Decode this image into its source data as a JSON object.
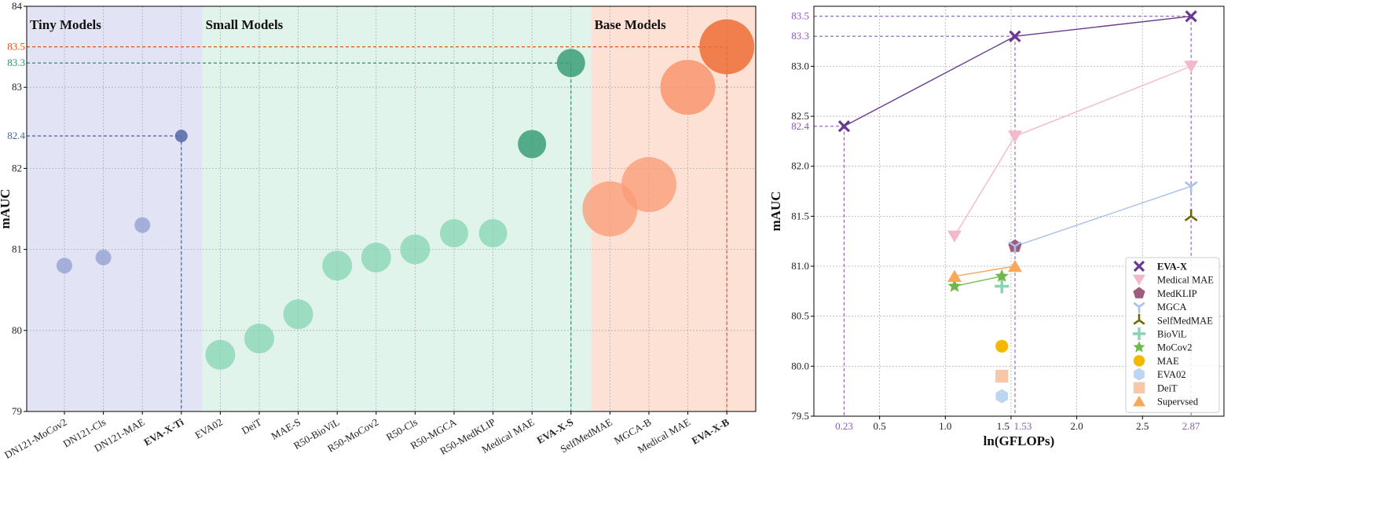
{
  "chart_data": [
    {
      "type": "scatter",
      "ylabel": "mAUC",
      "ylim": [
        79,
        84
      ],
      "yticks": [
        79,
        80,
        81,
        82,
        83,
        84
      ],
      "regions": [
        {
          "name": "Tiny Models",
          "color": "#d8daf0",
          "from": "DN121-MoCov2",
          "to": "EVA-X-Ti"
        },
        {
          "name": "Small Models",
          "color": "#d6f0e4",
          "from": "EVA02",
          "to": "EVA-X-S"
        },
        {
          "name": "Base Models",
          "color": "#fbd7c6",
          "from": "SelfMedMAE",
          "to": "EVA-X-B"
        }
      ],
      "categories": [
        "DN121-MoCov2",
        "DN121-Cls",
        "DN121-MAE",
        "EVA-X-Ti",
        "EVA02",
        "DeiT",
        "MAE-S",
        "R50-BioViL",
        "R50-MoCov2",
        "R50-Cls",
        "R50-MGCA",
        "R50-MedKLIP",
        "Medical MAE",
        "EVA-X-S",
        "SelfMedMAE",
        "MGCA-B",
        "Medical MAE",
        "EVA-X-B"
      ],
      "bold_categories": [
        "EVA-X-Ti",
        "EVA-X-S",
        "EVA-X-B"
      ],
      "values": [
        80.8,
        80.9,
        81.3,
        82.4,
        79.7,
        79.9,
        80.2,
        80.8,
        80.9,
        81.0,
        81.2,
        81.2,
        82.3,
        83.3,
        81.5,
        81.8,
        83.0,
        83.5
      ],
      "groups": [
        "tiny",
        "tiny",
        "tiny",
        "tiny",
        "small",
        "small",
        "small",
        "small",
        "small",
        "small",
        "small",
        "small",
        "small",
        "small",
        "base",
        "base",
        "base",
        "base"
      ],
      "relative_size": [
        1.0,
        1.0,
        1.0,
        0.9,
        1.9,
        1.9,
        1.9,
        1.9,
        1.9,
        1.9,
        1.8,
        1.8,
        1.8,
        1.8,
        3.5,
        3.5,
        3.5,
        3.5
      ],
      "highlights": [
        {
          "label": "82.4",
          "category_index": 3,
          "value": 82.4,
          "color": "#4a5fa0"
        },
        {
          "label": "83.3",
          "category_index": 13,
          "value": 83.3,
          "color": "#2f8f6a"
        },
        {
          "label": "83.5",
          "category_index": 17,
          "value": 83.5,
          "color": "#e0521c"
        }
      ],
      "colors": {
        "tiny": "#8f9fd0",
        "tiny_highlight": "#5366a8",
        "small": "#86d4b2",
        "small_highlight": "#3b9e78",
        "base": "#f99a76",
        "base_highlight": "#ef6c35"
      },
      "grid": true
    },
    {
      "type": "line",
      "xlabel": "ln(GFLOPs)",
      "ylabel": "mAUC",
      "xlim": [
        0.0,
        3.12
      ],
      "ylim": [
        79.5,
        83.6
      ],
      "xticks": [
        0.5,
        1.0,
        1.5,
        2.0,
        2.5
      ],
      "yticks": [
        79.5,
        80.0,
        80.5,
        81.0,
        81.5,
        82.0,
        82.5,
        83.0
      ],
      "special_xticks": [
        0.23,
        1.53,
        2.87
      ],
      "special_yticks": [
        82.4,
        83.3,
        83.5
      ],
      "grid": true,
      "legend_position": "lower-right",
      "series": [
        {
          "name": "EVA-X",
          "marker": "x",
          "color": "#6b3a8f",
          "x": [
            0.23,
            1.53,
            2.87
          ],
          "values": [
            82.4,
            83.3,
            83.5
          ]
        },
        {
          "name": "Medical MAE",
          "marker": "triangle-down",
          "color": "#f4b8cc",
          "x": [
            1.07,
            1.53,
            2.87
          ],
          "values": [
            81.3,
            82.3,
            83.0
          ]
        },
        {
          "name": "MedKLIP",
          "marker": "pentagon",
          "color": "#a05a7c",
          "x": [
            1.53
          ],
          "values": [
            81.2
          ]
        },
        {
          "name": "MGCA",
          "marker": "tri-down",
          "color": "#a9c0e6",
          "x": [
            1.53,
            2.87
          ],
          "values": [
            81.2,
            81.8
          ]
        },
        {
          "name": "SelfMedMAE",
          "marker": "tri-up",
          "color": "#6e6a00",
          "x": [
            2.87
          ],
          "values": [
            81.5
          ]
        },
        {
          "name": "BioViL",
          "marker": "plus",
          "color": "#86d4b2",
          "x": [
            1.43
          ],
          "values": [
            80.8
          ]
        },
        {
          "name": "MoCov2",
          "marker": "star",
          "color": "#6fb84a",
          "x": [
            1.07,
            1.43
          ],
          "values": [
            80.8,
            80.9
          ]
        },
        {
          "name": "MAE",
          "marker": "circle",
          "color": "#f5b800",
          "x": [
            1.43
          ],
          "values": [
            80.2
          ]
        },
        {
          "name": "EVA02",
          "marker": "hexagon",
          "color": "#bcd6f2",
          "x": [
            1.43
          ],
          "values": [
            79.7
          ]
        },
        {
          "name": "DeiT",
          "marker": "square",
          "color": "#f7c7a7",
          "x": [
            1.43
          ],
          "values": [
            79.9
          ]
        },
        {
          "name": "Supervsed",
          "marker": "triangle-up",
          "color": "#f7a85a",
          "x": [
            1.07,
            1.53
          ],
          "values": [
            80.9,
            81.0
          ]
        }
      ]
    }
  ]
}
